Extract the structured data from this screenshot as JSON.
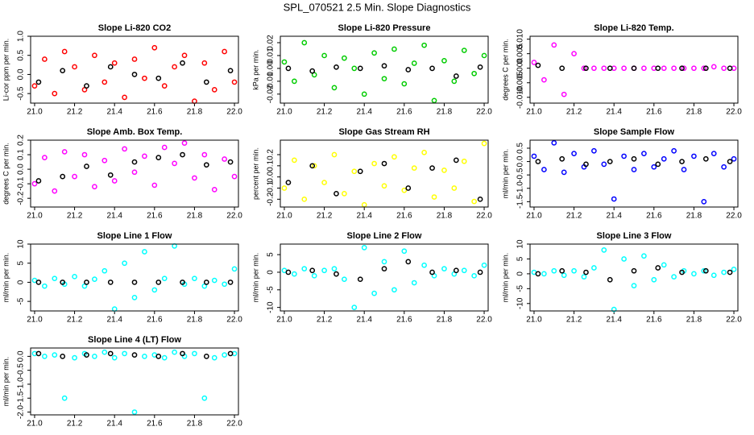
{
  "title": "SPL_070521  2.5 Min. Slope Diagnostics",
  "chart_data": [
    {
      "type": "scatter",
      "title": "Slope Li-820 CO2",
      "y_label": "Li-cor ppm per min.",
      "xlim": [
        20.98,
        22.02
      ],
      "xticks": [
        {
          "value": 21.0,
          "label": "21.0"
        },
        21.2,
        21.4,
        21.6,
        21.8,
        {
          "value": 22.0,
          "label": "22.0"
        }
      ],
      "ylim": [
        -0.75,
        1.0
      ],
      "yticks": [
        -0.5,
        {
          "value": 0.0,
          "label": "0.0"
        },
        0.5,
        {
          "value": 1.0,
          "label": "1.0"
        }
      ],
      "series": [
        {
          "color": "#ff0000",
          "x": [
            21.0,
            21.05,
            21.1,
            21.15,
            21.2,
            21.25,
            21.3,
            21.35,
            21.4,
            21.45,
            21.5,
            21.55,
            21.6,
            21.65,
            21.7,
            21.75,
            21.8,
            21.85,
            21.9,
            21.95,
            22.0
          ],
          "values": [
            -0.3,
            0.4,
            -0.5,
            0.6,
            0.2,
            -0.4,
            0.5,
            -0.2,
            0.3,
            -0.6,
            0.4,
            -0.1,
            0.7,
            -0.3,
            0.2,
            0.5,
            -0.7,
            0.3,
            -0.4,
            0.6,
            -0.2
          ]
        },
        {
          "color": "#000000",
          "x": [
            21.02,
            21.14,
            21.26,
            21.38,
            21.5,
            21.62,
            21.74,
            21.86,
            21.98
          ],
          "values": [
            -0.2,
            0.1,
            -0.3,
            0.2,
            0.0,
            -0.1,
            0.3,
            -0.2,
            0.1
          ]
        }
      ]
    },
    {
      "type": "scatter",
      "title": "Slope Li-820 Pressure",
      "y_label": "kPa per min.",
      "xlim": [
        20.98,
        22.02
      ],
      "xticks": [
        {
          "value": 21.0,
          "label": "21.0"
        },
        21.2,
        21.4,
        21.6,
        21.8,
        {
          "value": 22.0,
          "label": "22.0"
        }
      ],
      "ylim": [
        -0.027,
        0.025
      ],
      "yticks": [
        -0.02,
        -0.01,
        {
          "value": 0.0,
          "label": "0.00"
        },
        0.01,
        0.02
      ],
      "series": [
        {
          "color": "#00cc00",
          "x": [
            21.0,
            21.05,
            21.1,
            21.15,
            21.2,
            21.25,
            21.3,
            21.35,
            21.4,
            21.45,
            21.5,
            21.55,
            21.6,
            21.65,
            21.7,
            21.75,
            21.8,
            21.85,
            21.9,
            21.95,
            22.0
          ],
          "values": [
            0.005,
            -0.01,
            0.02,
            -0.005,
            0.01,
            -0.015,
            0.008,
            0.0,
            -0.02,
            0.012,
            -0.008,
            0.015,
            -0.012,
            0.004,
            0.018,
            -0.025,
            0.006,
            -0.01,
            0.014,
            -0.004,
            0.01
          ]
        },
        {
          "color": "#000000",
          "x": [
            21.02,
            21.14,
            21.26,
            21.38,
            21.5,
            21.62,
            21.74,
            21.86,
            21.98
          ],
          "values": [
            0.0,
            -0.002,
            0.001,
            0.0,
            0.002,
            -0.001,
            0.0,
            -0.006,
            0.001
          ]
        }
      ]
    },
    {
      "type": "scatter",
      "title": "Slope Li-820 Temp.",
      "y_label": "degrees C per min.",
      "xlim": [
        20.98,
        22.02
      ],
      "xticks": [
        {
          "value": 21.0,
          "label": "21.0"
        },
        21.2,
        21.4,
        21.6,
        21.8,
        {
          "value": 22.0,
          "label": "22.0"
        }
      ],
      "ylim": [
        -0.012,
        0.011
      ],
      "yticks": [
        {
          "value": -0.01,
          "label": "-0.010"
        },
        -0.005,
        {
          "value": 0.0,
          "label": "0.000"
        },
        0.005,
        {
          "value": 0.01,
          "label": "0.010"
        }
      ],
      "series": [
        {
          "color": "#ff00ff",
          "x": [
            21.0,
            21.05,
            21.1,
            21.15,
            21.2,
            21.25,
            21.3,
            21.35,
            21.4,
            21.45,
            21.5,
            21.55,
            21.6,
            21.65,
            21.7,
            21.75,
            21.8,
            21.85,
            21.9,
            21.95,
            22.0
          ],
          "values": [
            0.002,
            -0.004,
            0.008,
            -0.009,
            0.005,
            0.0,
            0.0,
            0.0,
            0.0,
            0.0,
            0.0,
            0.0,
            0.0,
            0.0,
            0.0,
            0.0,
            0.0,
            0.0,
            0.0005,
            0.0,
            0.0
          ]
        },
        {
          "color": "#000000",
          "x": [
            21.02,
            21.14,
            21.26,
            21.38,
            21.5,
            21.62,
            21.74,
            21.86,
            21.98
          ],
          "values": [
            0.001,
            0.0,
            0.0,
            0.0,
            0.0,
            0.0,
            0.0,
            0.0,
            0.0
          ]
        }
      ]
    },
    {
      "type": "scatter",
      "title": "Slope Amb. Box Temp.",
      "y_label": "degrees C per min.",
      "xlim": [
        20.98,
        22.02
      ],
      "xticks": [
        {
          "value": 21.0,
          "label": "21.0"
        },
        21.2,
        21.4,
        21.6,
        21.8,
        {
          "value": 22.0,
          "label": "22.0"
        }
      ],
      "ylim": [
        -0.26,
        0.2
      ],
      "yticks": [
        -0.2,
        -0.1,
        {
          "value": 0.0,
          "label": "0.0"
        },
        0.1,
        0.2
      ],
      "series": [
        {
          "color": "#ff00ff",
          "x": [
            21.0,
            21.05,
            21.1,
            21.15,
            21.2,
            21.25,
            21.3,
            21.35,
            21.4,
            21.45,
            21.5,
            21.55,
            21.6,
            21.65,
            21.7,
            21.75,
            21.8,
            21.85,
            21.9,
            21.95,
            22.0
          ],
          "values": [
            -0.1,
            0.08,
            -0.15,
            0.12,
            -0.05,
            0.1,
            -0.12,
            0.06,
            -0.08,
            0.14,
            -0.02,
            0.09,
            -0.11,
            0.15,
            0.04,
            0.18,
            -0.06,
            0.1,
            -0.14,
            0.07,
            -0.05
          ]
        },
        {
          "color": "#000000",
          "x": [
            21.02,
            21.14,
            21.26,
            21.38,
            21.5,
            21.62,
            21.74,
            21.86,
            21.98
          ],
          "values": [
            -0.08,
            -0.05,
            0.02,
            -0.04,
            0.05,
            0.08,
            0.1,
            0.03,
            0.05
          ]
        }
      ]
    },
    {
      "type": "scatter",
      "title": "Slope Gas Stream RH",
      "y_label": "percent per min.",
      "xlim": [
        20.98,
        22.02
      ],
      "xticks": [
        {
          "value": 21.0,
          "label": "21.0"
        },
        21.2,
        21.4,
        21.6,
        21.8,
        {
          "value": 22.0,
          "label": "22.0"
        }
      ],
      "ylim": [
        -0.27,
        0.33
      ],
      "yticks": [
        -0.2,
        -0.1,
        {
          "value": 0.0,
          "label": "0.0"
        },
        0.1,
        0.2
      ],
      "series": [
        {
          "color": "#ffff00",
          "x": [
            21.0,
            21.05,
            21.1,
            21.15,
            21.2,
            21.25,
            21.3,
            21.35,
            21.4,
            21.45,
            21.5,
            21.55,
            21.6,
            21.65,
            21.7,
            21.75,
            21.8,
            21.85,
            21.9,
            21.95,
            22.0
          ],
          "values": [
            -0.1,
            0.15,
            -0.2,
            0.1,
            -0.05,
            0.2,
            -0.15,
            0.05,
            -0.25,
            0.12,
            -0.08,
            0.18,
            -0.12,
            0.08,
            0.22,
            -0.18,
            0.06,
            -0.1,
            0.14,
            -0.22,
            0.3
          ]
        },
        {
          "color": "#000000",
          "x": [
            21.02,
            21.14,
            21.26,
            21.38,
            21.5,
            21.62,
            21.74,
            21.86,
            21.98
          ],
          "values": [
            -0.05,
            0.1,
            -0.15,
            0.05,
            0.12,
            -0.1,
            0.08,
            0.15,
            -0.2
          ]
        }
      ]
    },
    {
      "type": "scatter",
      "title": "Slope Sample Flow",
      "y_label": "ml/min per min.",
      "xlim": [
        20.98,
        22.02
      ],
      "xticks": [
        {
          "value": 21.0,
          "label": "21.0"
        },
        21.2,
        21.4,
        21.6,
        21.8,
        {
          "value": 22.0,
          "label": "22.0"
        }
      ],
      "ylim": [
        -1.7,
        0.8
      ],
      "yticks": [
        -1.5,
        {
          "value": -1.0,
          "label": "-1.0"
        },
        -0.5,
        {
          "value": 0.0,
          "label": "0.0"
        },
        0.5
      ],
      "series": [
        {
          "color": "#0000ff",
          "x": [
            21.0,
            21.05,
            21.1,
            21.15,
            21.2,
            21.25,
            21.3,
            21.35,
            21.4,
            21.45,
            21.5,
            21.55,
            21.6,
            21.65,
            21.7,
            21.75,
            21.8,
            21.85,
            21.9,
            21.95,
            22.0
          ],
          "values": [
            0.2,
            -0.3,
            0.7,
            -0.4,
            0.3,
            -0.2,
            0.4,
            -0.1,
            -1.4,
            0.2,
            -0.3,
            0.3,
            -0.2,
            0.1,
            0.4,
            -0.3,
            0.2,
            -1.5,
            0.3,
            -0.2,
            0.1
          ]
        },
        {
          "color": "#000000",
          "x": [
            21.02,
            21.14,
            21.26,
            21.38,
            21.5,
            21.62,
            21.74,
            21.86,
            21.98
          ],
          "values": [
            0.0,
            0.1,
            -0.1,
            0.0,
            0.1,
            -0.1,
            0.0,
            0.1,
            0.0
          ]
        }
      ]
    },
    {
      "type": "scatter",
      "title": "Slope Line 1 Flow",
      "y_label": "ml/min per min.",
      "xlim": [
        20.98,
        22.02
      ],
      "xticks": [
        {
          "value": 21.0,
          "label": "21.0"
        },
        21.2,
        21.4,
        21.6,
        21.8,
        {
          "value": 22.0,
          "label": "22.0"
        }
      ],
      "ylim": [
        -7.5,
        10
      ],
      "yticks": [
        -5,
        0,
        5,
        10
      ],
      "series": [
        {
          "color": "#00ffff",
          "x": [
            21.0,
            21.05,
            21.1,
            21.15,
            21.2,
            21.25,
            21.3,
            21.35,
            21.4,
            21.45,
            21.5,
            21.55,
            21.6,
            21.65,
            21.7,
            21.75,
            21.8,
            21.85,
            21.9,
            21.95,
            22.0
          ],
          "values": [
            0.5,
            -1,
            1,
            -0.5,
            1.5,
            -1,
            0.8,
            3,
            -7,
            5,
            -4,
            8,
            -2,
            1,
            9.5,
            -0.5,
            1,
            -1,
            0.5,
            -0.5,
            3.5
          ]
        },
        {
          "color": "#000000",
          "x": [
            21.02,
            21.14,
            21.26,
            21.38,
            21.5,
            21.62,
            21.74,
            21.86,
            21.98
          ],
          "values": [
            0,
            0,
            0,
            0,
            0,
            0,
            0,
            0,
            0
          ]
        }
      ]
    },
    {
      "type": "scatter",
      "title": "Slope Line 2 Flow",
      "y_label": "ml/min per min.",
      "xlim": [
        20.98,
        22.02
      ],
      "xticks": [
        {
          "value": 21.0,
          "label": "21.0"
        },
        21.2,
        21.4,
        21.6,
        21.8,
        {
          "value": 22.0,
          "label": "22.0"
        }
      ],
      "ylim": [
        -11,
        8
      ],
      "yticks": [
        -10,
        -5,
        0,
        5
      ],
      "series": [
        {
          "color": "#00ffff",
          "x": [
            21.0,
            21.05,
            21.1,
            21.15,
            21.2,
            21.25,
            21.3,
            21.35,
            21.4,
            21.45,
            21.5,
            21.55,
            21.6,
            21.65,
            21.7,
            21.75,
            21.8,
            21.85,
            21.9,
            21.95,
            22.0
          ],
          "values": [
            0.5,
            -0.5,
            1,
            -1,
            0.5,
            1,
            -2,
            -10,
            7,
            -6,
            3,
            -5,
            6,
            -3,
            2,
            -1,
            1,
            -0.5,
            0.5,
            -1,
            2
          ]
        },
        {
          "color": "#000000",
          "x": [
            21.02,
            21.14,
            21.26,
            21.38,
            21.5,
            21.62,
            21.74,
            21.86,
            21.98
          ],
          "values": [
            0,
            0.5,
            -0.5,
            -2,
            1,
            3,
            0,
            0.5,
            0
          ]
        }
      ]
    },
    {
      "type": "scatter",
      "title": "Slope Line 3 Flow",
      "y_label": "ml/min per min.",
      "xlim": [
        20.98,
        22.02
      ],
      "xticks": [
        {
          "value": 21.0,
          "label": "21.0"
        },
        21.2,
        21.4,
        21.6,
        21.8,
        {
          "value": 22.0,
          "label": "22.0"
        }
      ],
      "ylim": [
        -12.5,
        10
      ],
      "yticks": [
        -10,
        -5,
        0,
        5,
        10
      ],
      "series": [
        {
          "color": "#00ffff",
          "x": [
            21.0,
            21.05,
            21.1,
            21.15,
            21.2,
            21.25,
            21.3,
            21.35,
            21.4,
            21.45,
            21.5,
            21.55,
            21.6,
            21.65,
            21.7,
            21.75,
            21.8,
            21.85,
            21.9,
            21.95,
            22.0
          ],
          "values": [
            0.5,
            0,
            1,
            -0.5,
            1,
            -1,
            2,
            8,
            -12,
            5,
            -4,
            6,
            -2,
            3,
            -1,
            1,
            0,
            1,
            -0.5,
            0.5,
            1.5
          ]
        },
        {
          "color": "#000000",
          "x": [
            21.02,
            21.14,
            21.26,
            21.38,
            21.5,
            21.62,
            21.74,
            21.86,
            21.98
          ],
          "values": [
            0,
            1,
            0.5,
            -2,
            1,
            2,
            0.5,
            1,
            0.5
          ]
        }
      ]
    },
    {
      "type": "scatter",
      "title": "Slope Line 4 (LT) Flow",
      "y_label": "ml/min per min.",
      "xlim": [
        20.98,
        22.02
      ],
      "xticks": [
        {
          "value": 21.0,
          "label": "21.0"
        },
        21.2,
        21.4,
        21.6,
        21.8,
        {
          "value": 22.0,
          "label": "22.0"
        }
      ],
      "ylim": [
        -2.1,
        0.3
      ],
      "yticks": [
        {
          "value": -2.0,
          "label": "-2.0"
        },
        -1.5,
        {
          "value": -1.0,
          "label": "-1.0"
        },
        -0.5,
        {
          "value": 0.0,
          "label": "0.0"
        }
      ],
      "series": [
        {
          "color": "#00ffff",
          "x": [
            21.0,
            21.05,
            21.1,
            21.15,
            21.2,
            21.25,
            21.3,
            21.35,
            21.4,
            21.45,
            21.5,
            21.55,
            21.6,
            21.65,
            21.7,
            21.75,
            21.8,
            21.85,
            21.9,
            21.95,
            22.0
          ],
          "values": [
            0.1,
            0,
            0.05,
            -1.5,
            -0.05,
            0.1,
            0,
            0.15,
            -0.05,
            0.1,
            -2.0,
            0,
            0.05,
            -0.05,
            0.15,
            0,
            0.1,
            -1.5,
            -0.05,
            0.05,
            0.1
          ]
        },
        {
          "color": "#000000",
          "x": [
            21.02,
            21.14,
            21.26,
            21.38,
            21.5,
            21.62,
            21.74,
            21.86,
            21.98
          ],
          "values": [
            0.1,
            0,
            0.05,
            0.1,
            0.05,
            0,
            0.1,
            0,
            0.1
          ]
        }
      ]
    }
  ]
}
